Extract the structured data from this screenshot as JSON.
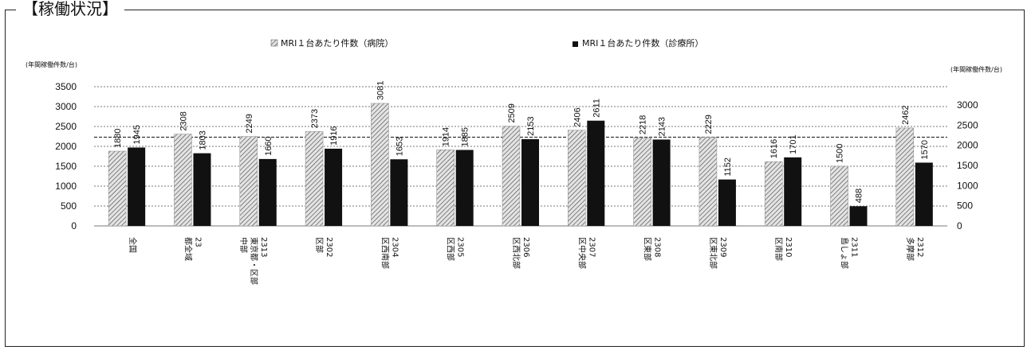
{
  "heading": "【稼働状況】",
  "chart_data": {
    "type": "bar",
    "title": "",
    "ylabel_left": "(年間稼働件数/台)",
    "ylabel_right": "(年間稼働件数/台)",
    "ylim_left": [
      0,
      3500
    ],
    "ylim_right": [
      0,
      3000
    ],
    "yticks_left": [
      0,
      500,
      1000,
      1500,
      2000,
      2500,
      3000,
      3500
    ],
    "yticks_right": [
      0,
      500,
      1000,
      1500,
      2000,
      2500,
      3000
    ],
    "reference_line_right": 2200,
    "legend_position": "top",
    "categories": [
      "全国",
      "23 都全域",
      "2313 東京都 ・ 区部",
      "2302 区部",
      "2304 区西南部",
      "2305 区西部",
      "2306 区西北部",
      "2307 区中央部",
      "2308 区東部",
      "2309 区東北部",
      "2310 区南部",
      "2311 島しょ部",
      "2312 多摩部"
    ],
    "category_lines": [
      [
        "全国"
      ],
      [
        "23",
        "都全域"
      ],
      [
        "2313",
        "東京都・区部",
        "中部"
      ],
      [
        "2302",
        "区部"
      ],
      [
        "2304",
        "区西南部"
      ],
      [
        "2305",
        "区西部"
      ],
      [
        "2306",
        "区西北部"
      ],
      [
        "2307",
        "区中央部"
      ],
      [
        "2308",
        "区東部"
      ],
      [
        "2309",
        "区東北部"
      ],
      [
        "2310",
        "区南部"
      ],
      [
        "2311",
        "島しょ部"
      ],
      [
        "2312",
        "多摩部"
      ]
    ],
    "series": [
      {
        "name": "MRI１台あたり件数（病院）",
        "axis": "left",
        "pattern": "hatch",
        "color": "#d0d0d0",
        "values": [
          1880,
          2308,
          2249,
          2373,
          3081,
          1914,
          2509,
          2406,
          2218,
          2229,
          1616,
          1500,
          2462
        ]
      },
      {
        "name": "MRI１台あたり件数（診療所）",
        "axis": "right",
        "pattern": "solid",
        "color": "#111111",
        "values": [
          1945,
          1803,
          1660,
          1916,
          1653,
          1885,
          2153,
          2611,
          2143,
          1152,
          1701,
          488,
          1570
        ]
      }
    ]
  }
}
